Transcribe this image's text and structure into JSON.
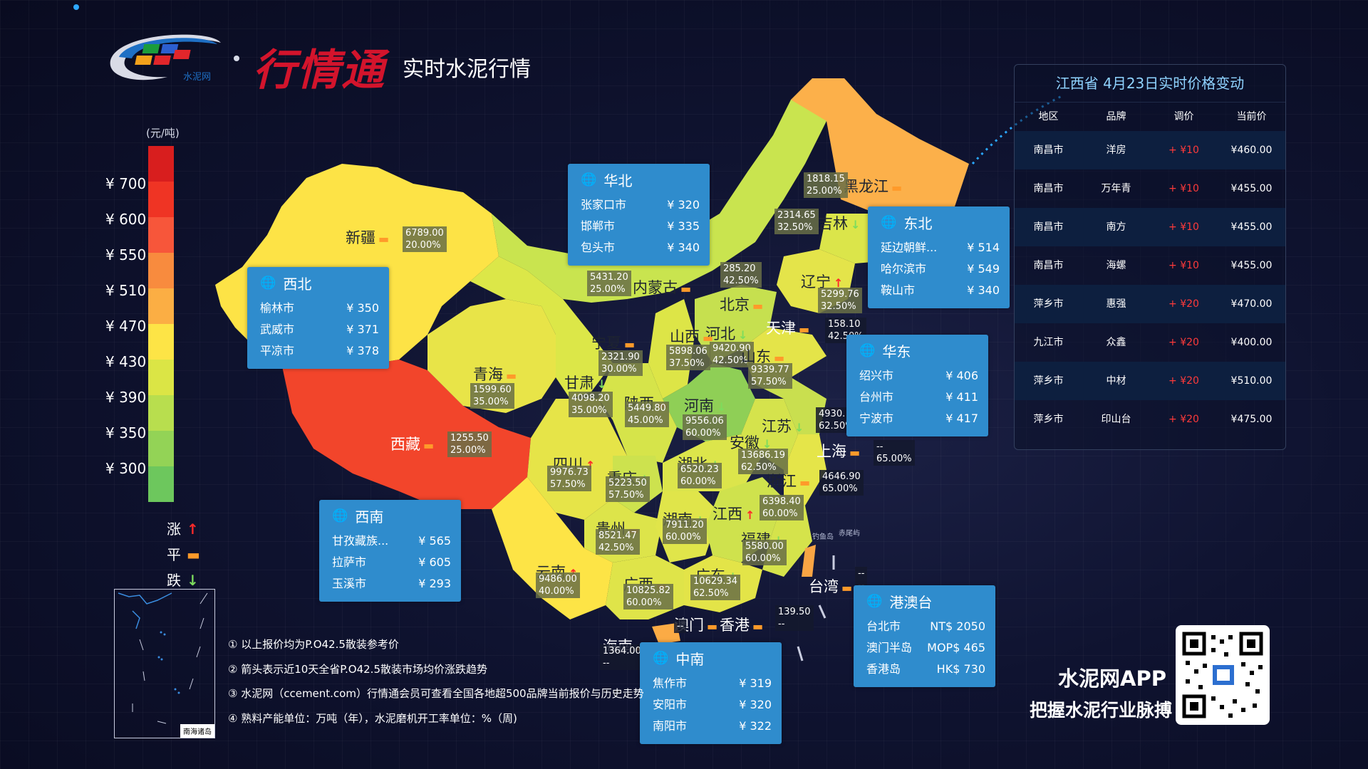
{
  "header": {
    "logo_text": "水泥网",
    "brand": "行情通",
    "subtitle": "实时水泥行情"
  },
  "legend": {
    "unit": "(元/吨)",
    "ticks": [
      "¥ 700",
      "¥ 600",
      "¥ 550",
      "¥ 510",
      "¥ 470",
      "¥ 430",
      "¥ 390",
      "¥ 350",
      "¥ 300"
    ],
    "colors": [
      "#d81e1e",
      "#ef3424",
      "#f7563a",
      "#f88b3e",
      "#fbae44",
      "#fde446",
      "#dbe545",
      "#b8de4e",
      "#93d356",
      "#6dc75d"
    ],
    "trend": [
      {
        "label": "涨",
        "symbol": "↑",
        "type": "up"
      },
      {
        "label": "平",
        "symbol": "▬",
        "type": "flat"
      },
      {
        "label": "跌",
        "symbol": "↓",
        "type": "down"
      }
    ]
  },
  "regions": {
    "huabei": {
      "title": "华北",
      "rows": [
        {
          "city": "张家口市",
          "price": "¥ 320"
        },
        {
          "city": "邯郸市",
          "price": "¥ 335"
        },
        {
          "city": "包头市",
          "price": "¥ 340"
        }
      ]
    },
    "xibei": {
      "title": "西北",
      "rows": [
        {
          "city": "榆林市",
          "price": "¥ 350"
        },
        {
          "city": "武威市",
          "price": "¥ 371"
        },
        {
          "city": "平凉市",
          "price": "¥ 378"
        }
      ]
    },
    "dongbei": {
      "title": "东北",
      "rows": [
        {
          "city": "延边朝鲜...",
          "price": "¥ 514"
        },
        {
          "city": "哈尔滨市",
          "price": "¥ 549"
        },
        {
          "city": "鞍山市",
          "price": "¥ 340"
        }
      ]
    },
    "huadong": {
      "title": "华东",
      "rows": [
        {
          "city": "绍兴市",
          "price": "¥ 406"
        },
        {
          "city": "台州市",
          "price": "¥ 411"
        },
        {
          "city": "宁波市",
          "price": "¥ 417"
        }
      ]
    },
    "xinan": {
      "title": "西南",
      "rows": [
        {
          "city": "甘孜藏族...",
          "price": "¥ 565"
        },
        {
          "city": "拉萨市",
          "price": "¥ 605"
        },
        {
          "city": "玉溪市",
          "price": "¥ 293"
        }
      ]
    },
    "zhongnan": {
      "title": "中南",
      "rows": [
        {
          "city": "焦作市",
          "price": "¥ 319"
        },
        {
          "city": "安阳市",
          "price": "¥ 320"
        },
        {
          "city": "南阳市",
          "price": "¥ 322"
        }
      ]
    },
    "gangaotai": {
      "title": "港澳台",
      "rows": [
        {
          "city": "台北市",
          "price": "NT$ 2050"
        },
        {
          "city": "澳门半岛",
          "price": "MOP$ 465"
        },
        {
          "city": "香港岛",
          "price": "HK$ 730"
        }
      ]
    }
  },
  "provinces": [
    {
      "name": "新疆",
      "v1": "6789.00",
      "v2": "20.00%",
      "trend": "flat"
    },
    {
      "name": "西藏",
      "v1": "1255.50",
      "v2": "25.00%",
      "trend": "flat"
    },
    {
      "name": "青海",
      "v1": "1599.60",
      "v2": "35.00%",
      "trend": "flat"
    },
    {
      "name": "甘肃",
      "v1": "4098.20",
      "v2": "35.00%",
      "trend": "down"
    },
    {
      "name": "宁夏",
      "v1": "2321.90",
      "v2": "30.00%",
      "trend": "flat"
    },
    {
      "name": "内蒙古",
      "v1": "5431.20",
      "v2": "25.00%",
      "trend": "flat"
    },
    {
      "name": "黑龙江",
      "v1": "1818.15",
      "v2": "25.00%",
      "trend": "flat"
    },
    {
      "name": "吉林",
      "v1": "2314.65",
      "v2": "32.50%",
      "trend": "down"
    },
    {
      "name": "辽宁",
      "v1": "5299.76",
      "v2": "32.50%",
      "trend": "up"
    },
    {
      "name": "北京",
      "v1": "285.20",
      "v2": "42.50%",
      "trend": "flat"
    },
    {
      "name": "天津",
      "v1": "158.10",
      "v2": "42.50%",
      "trend": "flat"
    },
    {
      "name": "河北",
      "v1": "9420.90",
      "v2": "42.50%",
      "trend": "down"
    },
    {
      "name": "山西",
      "v1": "5898.06",
      "v2": "37.50%",
      "trend": "flat"
    },
    {
      "name": "山东",
      "v1": "9339.77",
      "v2": "57.50%",
      "trend": "flat"
    },
    {
      "name": "陕西",
      "v1": "5449.80",
      "v2": "45.00%",
      "trend": "flat"
    },
    {
      "name": "河南",
      "v1": "9556.06",
      "v2": "60.00%",
      "trend": "down"
    },
    {
      "name": "江苏",
      "v1": "4930.",
      "v2": "62.50%",
      "trend": "down"
    },
    {
      "name": "上海",
      "v1": "--",
      "v2": "65.00%",
      "trend": "flat"
    },
    {
      "name": "安徽",
      "v1": "13686.19",
      "v2": "62.50%",
      "trend": "down"
    },
    {
      "name": "四川",
      "v1": "9976.73",
      "v2": "57.50%",
      "trend": "up"
    },
    {
      "name": "重庆",
      "v1": "5223.50",
      "v2": "57.50%",
      "trend": "down"
    },
    {
      "name": "湖北",
      "v1": "6520.23",
      "v2": "60.00%",
      "trend": "down"
    },
    {
      "name": "浙江",
      "v1": "4646.90",
      "v2": "65.00%",
      "trend": "flat"
    },
    {
      "name": "湖南",
      "v1": "7911.20",
      "v2": "60.00%",
      "trend": "down"
    },
    {
      "name": "江西",
      "v1": "6398.40",
      "v2": "60.00%",
      "trend": "up"
    },
    {
      "name": "贵州",
      "v1": "8521.47",
      "v2": "42.50%",
      "trend": "flat"
    },
    {
      "name": "福建",
      "v1": "5580.00",
      "v2": "60.00%",
      "trend": "down"
    },
    {
      "name": "云南",
      "v1": "9486.00",
      "v2": "40.00%",
      "trend": "up"
    },
    {
      "name": "广西",
      "v1": "10825.82",
      "v2": "60.00%",
      "trend": "flat"
    },
    {
      "name": "广东",
      "v1": "10629.34",
      "v2": "62.50%",
      "trend": "down"
    },
    {
      "name": "台湾",
      "v1": "--",
      "v2": "--",
      "trend": "flat"
    },
    {
      "name": "澳门",
      "v1": "--",
      "v2": "",
      "trend": "flat"
    },
    {
      "name": "香港",
      "v1": "139.50",
      "v2": "--",
      "trend": "flat"
    },
    {
      "name": "海南",
      "v1": "1364.00",
      "v2": "--",
      "trend": "flat"
    }
  ],
  "sea_labels": [
    "钓鱼岛",
    "赤尾屿"
  ],
  "price_table": {
    "title": "江西省 4月23日实时价格变动",
    "headers": [
      "地区",
      "品牌",
      "调价",
      "当前价"
    ],
    "rows": [
      [
        "南昌市",
        "洋房",
        "+ ¥10",
        "¥460.00"
      ],
      [
        "南昌市",
        "万年青",
        "+ ¥10",
        "¥455.00"
      ],
      [
        "南昌市",
        "南方",
        "+ ¥10",
        "¥455.00"
      ],
      [
        "南昌市",
        "海螺",
        "+ ¥10",
        "¥455.00"
      ],
      [
        "萍乡市",
        "惠强",
        "+ ¥20",
        "¥470.00"
      ],
      [
        "九江市",
        "众鑫",
        "+ ¥20",
        "¥400.00"
      ],
      [
        "萍乡市",
        "中材",
        "+ ¥20",
        "¥510.00"
      ],
      [
        "萍乡市",
        "印山台",
        "+ ¥20",
        "¥475.00"
      ]
    ]
  },
  "notes": [
    "① 以上报价均为P.O42.5散装参考价",
    "② 箭头表示近10天全省P.O42.5散装市场均价涨跌趋势",
    "③ 水泥网（ccement.com）行情通会员可查看全国各地超500品牌当前报价与历史走势",
    "④ 熟料产能单位：万吨（年），水泥磨机开工率单位：%（周)"
  ],
  "inset": {
    "label": "南海诸岛"
  },
  "app": {
    "name": "水泥网APP",
    "slogan": "把握水泥行业脉搏"
  }
}
